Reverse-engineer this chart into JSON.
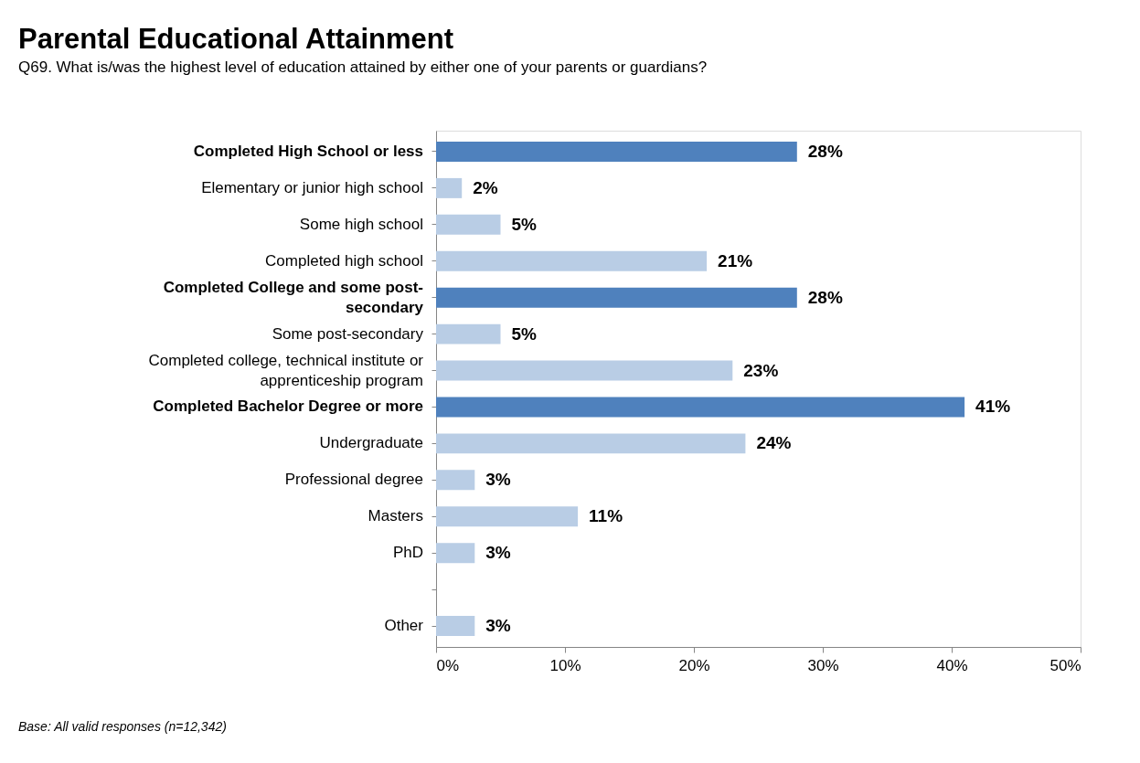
{
  "chart_data": {
    "type": "bar",
    "orientation": "horizontal",
    "title": "Parental Educational Attainment",
    "subtitle": "Q69. What is/was the highest level of education attained by either one of your parents or guardians?",
    "categories": [
      "Completed High School or less",
      "Elementary or junior high school",
      "Some high school",
      "Completed high school",
      "Completed College and some post-secondary",
      "Some post-secondary",
      "Completed college, technical institute or apprenticeship program",
      "Completed Bachelor Degree or more",
      "Undergraduate",
      "Professional degree",
      "Masters",
      "PhD",
      null,
      "Other"
    ],
    "values": [
      28,
      2,
      5,
      21,
      28,
      5,
      23,
      41,
      24,
      3,
      11,
      3,
      null,
      3
    ],
    "colors": [
      "#4f81bd",
      "#b9cde5",
      "#b9cde5",
      "#b9cde5",
      "#4f81bd",
      "#b9cde5",
      "#b9cde5",
      "#4f81bd",
      "#b9cde5",
      "#b9cde5",
      "#b9cde5",
      "#b9cde5",
      "#b9cde5",
      "#b9cde5"
    ],
    "value_labels": [
      "28%",
      "2%",
      "5%",
      "21%",
      "28%",
      "5%",
      "23%",
      "41%",
      "24%",
      "3%",
      "11%",
      "3%",
      null,
      "3%"
    ],
    "xlim": [
      0,
      50
    ],
    "xticks": [
      {
        "value": 0,
        "label": "0%"
      },
      {
        "value": 10,
        "label": "10%"
      },
      {
        "value": 20,
        "label": "20%"
      },
      {
        "value": 30,
        "label": "30%"
      },
      {
        "value": 40,
        "label": "40%"
      },
      {
        "value": 50,
        "label": "50%"
      }
    ],
    "grid": false,
    "annotations": [
      "Base: All valid responses (n=12,342)"
    ]
  }
}
